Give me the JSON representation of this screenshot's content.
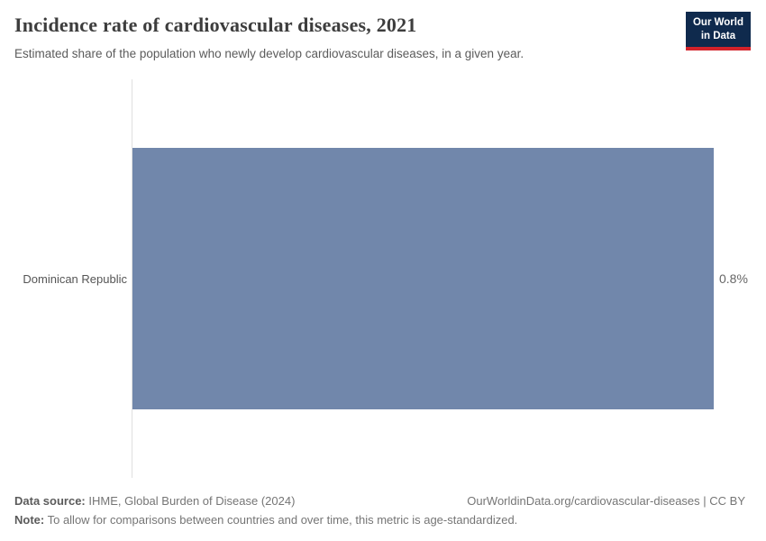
{
  "header": {
    "title": "Incidence rate of cardiovascular diseases, 2021",
    "subtitle": "Estimated share of the population who newly develop cardiovascular diseases, in a given year.",
    "logo": {
      "line1": "Our World",
      "line2": "in Data"
    }
  },
  "chart_data": {
    "type": "bar",
    "orientation": "horizontal",
    "title": "Incidence rate of cardiovascular diseases, 2021",
    "categories": [
      "Dominican Republic"
    ],
    "values": [
      0.8
    ],
    "value_labels": [
      "0.8%"
    ],
    "unit": "%",
    "xlabel": "",
    "ylabel": "",
    "xlim": [
      0,
      0.8
    ],
    "grid": false,
    "legend": "none"
  },
  "footer": {
    "data_source_label": "Data source:",
    "data_source_value": " IHME, Global Burden of Disease (2024)",
    "attribution": "OurWorldinData.org/cardiovascular-diseases | CC BY",
    "note_label": "Note:",
    "note_value": " To allow for comparisons between countries and over time, this metric is age-standardized."
  },
  "colors": {
    "bar": "#7187ab",
    "logo_bg": "#0f2a4d",
    "logo_accent": "#d3222a",
    "title_text": "#3d3d3d",
    "body_text": "#5b5b5b",
    "axis_line": "#e0e0e0"
  }
}
